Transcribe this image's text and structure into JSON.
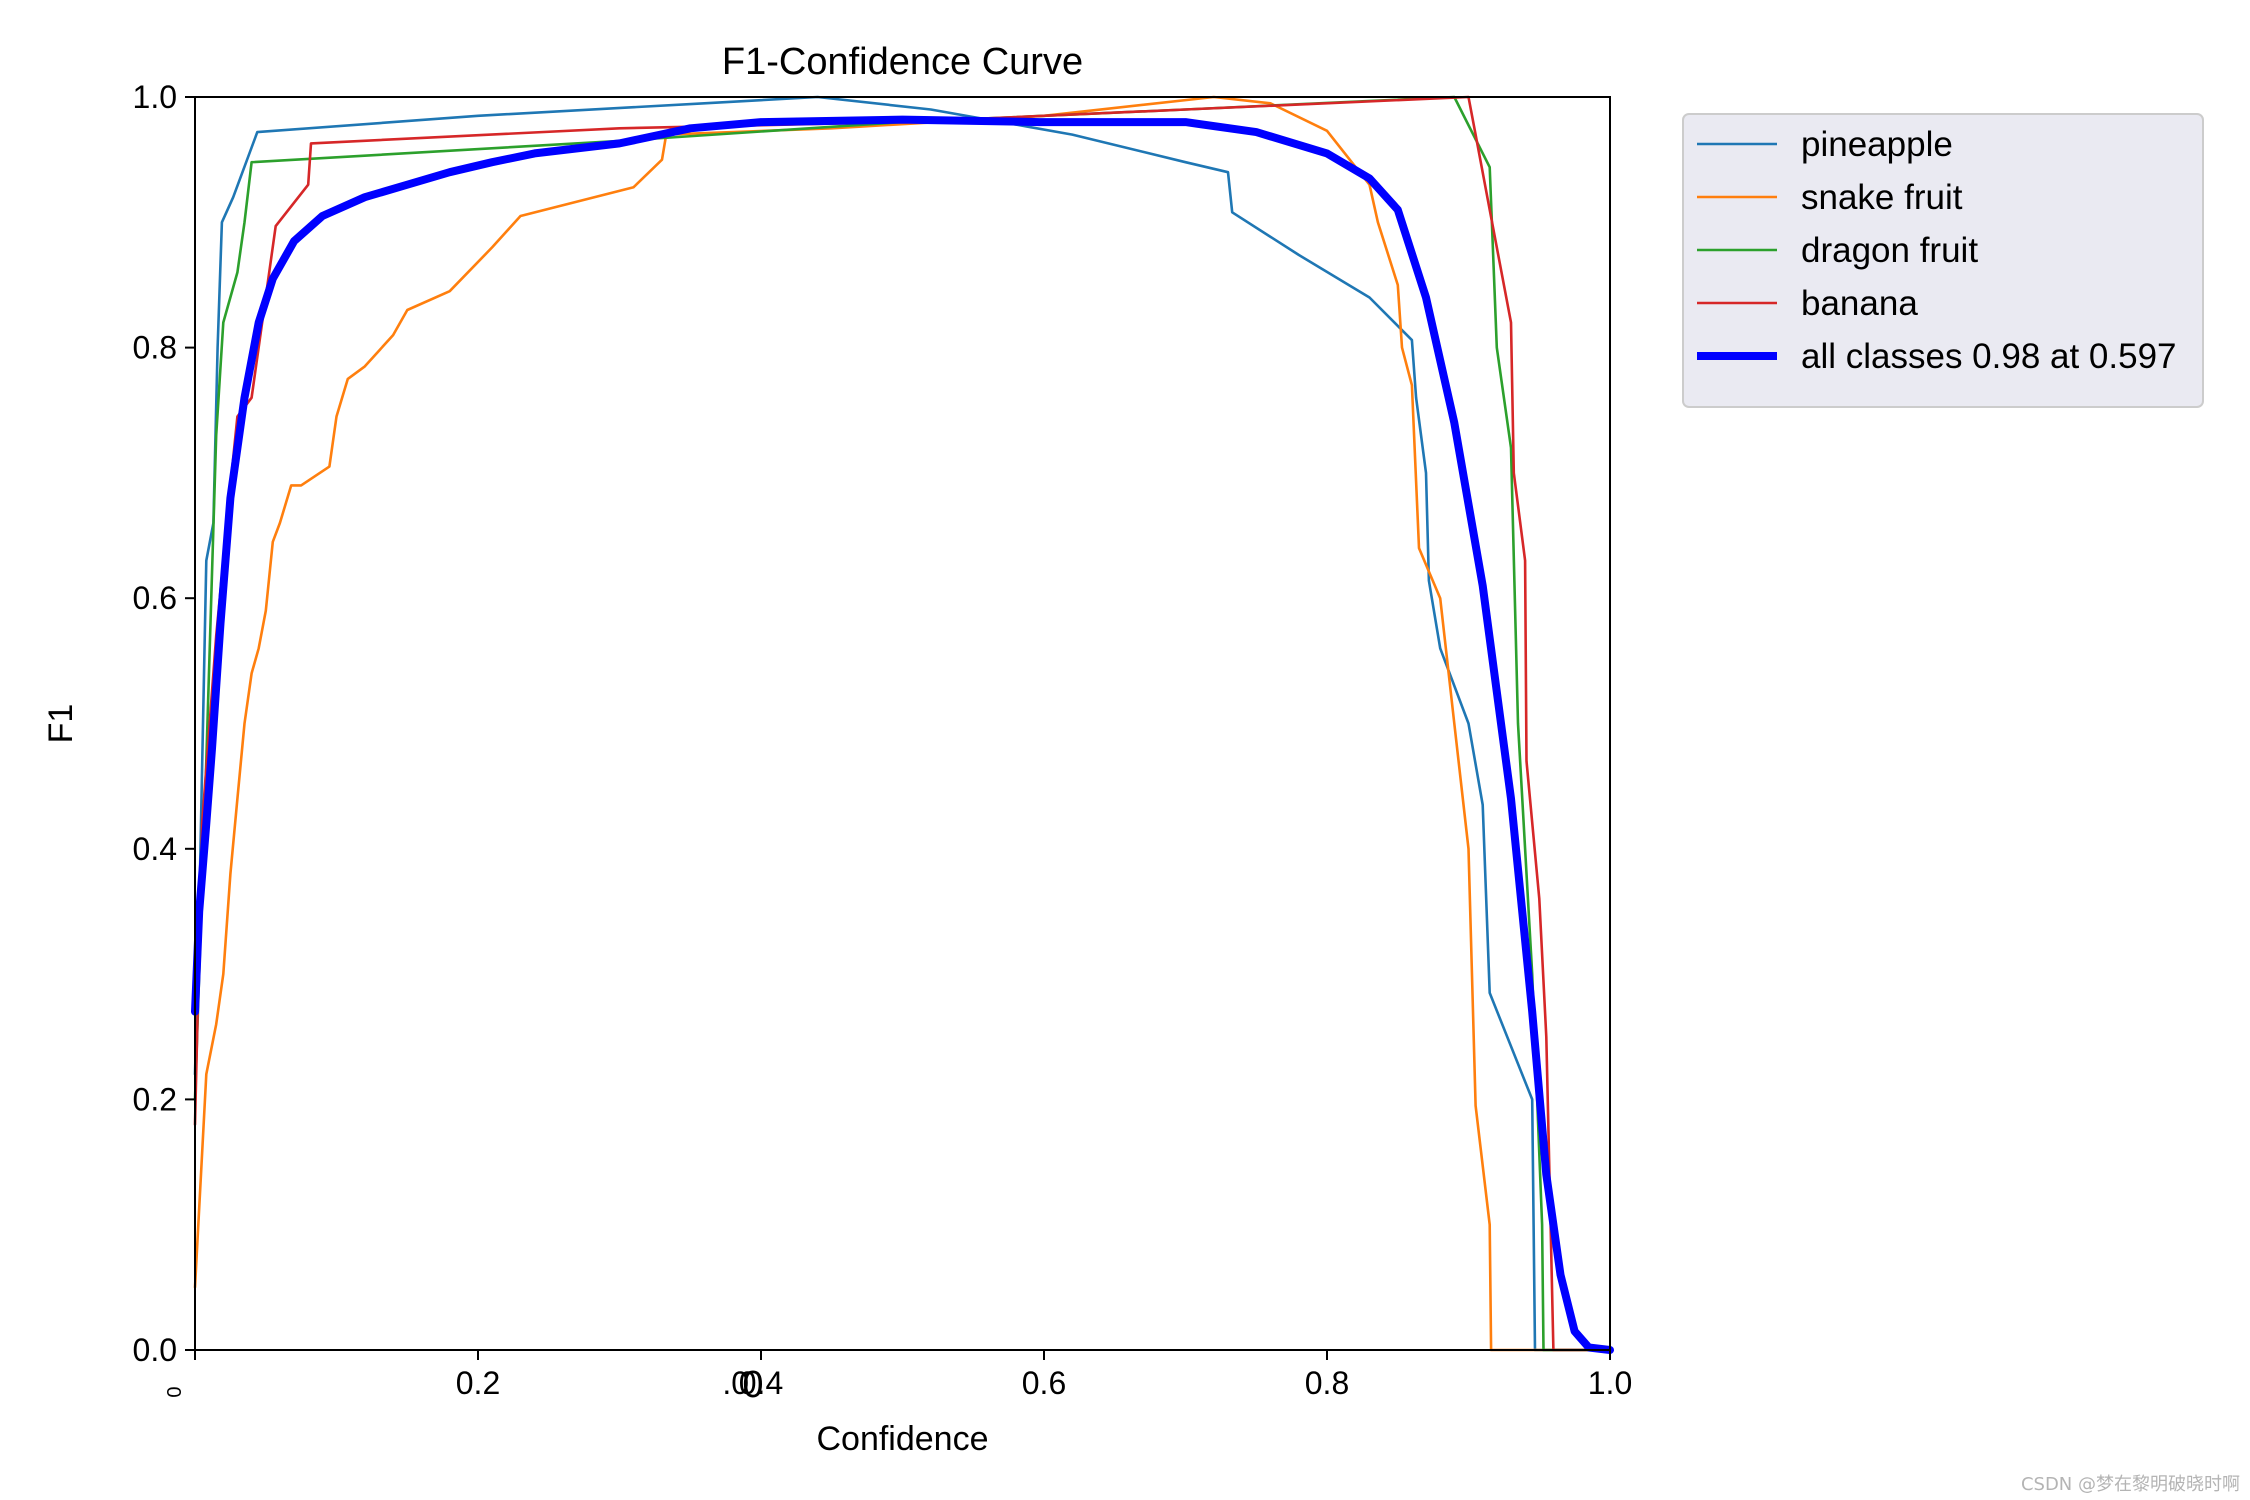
{
  "chart_data": {
    "type": "line",
    "title": "F1-Confidence Curve",
    "xlabel": "Confidence",
    "ylabel": "F1",
    "xlim": [
      0,
      1
    ],
    "ylim": [
      0,
      1
    ],
    "xticks": [
      "0",
      "0.2",
      "0.4",
      "0.6",
      "0.8",
      "1.0"
    ],
    "xticks_extra": [
      "0",
      ".0"
    ],
    "yticks": [
      "0.0",
      "0.2",
      "0.4",
      "0.6",
      "0.8",
      "1.0"
    ],
    "grid": false,
    "legend_position": "outside-right",
    "series": [
      {
        "name": "pineapple",
        "color": "#1f77b4",
        "points": [
          [
            0.0,
            0.22
          ],
          [
            0.003,
            0.35
          ],
          [
            0.008,
            0.63
          ],
          [
            0.013,
            0.66
          ],
          [
            0.016,
            0.8
          ],
          [
            0.019,
            0.9
          ],
          [
            0.027,
            0.92
          ],
          [
            0.044,
            0.972
          ],
          [
            0.2,
            0.985
          ],
          [
            0.36,
            0.995
          ],
          [
            0.44,
            1.0
          ],
          [
            0.52,
            0.99
          ],
          [
            0.62,
            0.97
          ],
          [
            0.7,
            0.948
          ],
          [
            0.73,
            0.94
          ],
          [
            0.733,
            0.908
          ],
          [
            0.78,
            0.874
          ],
          [
            0.83,
            0.84
          ],
          [
            0.86,
            0.806
          ],
          [
            0.863,
            0.76
          ],
          [
            0.87,
            0.7
          ],
          [
            0.872,
            0.614
          ],
          [
            0.88,
            0.56
          ],
          [
            0.9,
            0.5
          ],
          [
            0.91,
            0.435
          ],
          [
            0.915,
            0.285
          ],
          [
            0.945,
            0.2
          ],
          [
            0.946,
            0.1
          ],
          [
            0.947,
            0.0
          ],
          [
            1.0,
            0.0
          ]
        ]
      },
      {
        "name": "snake fruit",
        "color": "#ff7f0e",
        "points": [
          [
            0.0,
            0.05
          ],
          [
            0.008,
            0.22
          ],
          [
            0.015,
            0.26
          ],
          [
            0.02,
            0.3
          ],
          [
            0.025,
            0.38
          ],
          [
            0.03,
            0.44
          ],
          [
            0.035,
            0.5
          ],
          [
            0.04,
            0.54
          ],
          [
            0.045,
            0.56
          ],
          [
            0.05,
            0.59
          ],
          [
            0.055,
            0.645
          ],
          [
            0.06,
            0.66
          ],
          [
            0.068,
            0.69
          ],
          [
            0.075,
            0.69
          ],
          [
            0.095,
            0.705
          ],
          [
            0.1,
            0.745
          ],
          [
            0.108,
            0.775
          ],
          [
            0.12,
            0.785
          ],
          [
            0.14,
            0.81
          ],
          [
            0.15,
            0.83
          ],
          [
            0.18,
            0.845
          ],
          [
            0.21,
            0.88
          ],
          [
            0.23,
            0.905
          ],
          [
            0.31,
            0.928
          ],
          [
            0.33,
            0.95
          ],
          [
            0.333,
            0.97
          ],
          [
            0.45,
            0.975
          ],
          [
            0.6,
            0.985
          ],
          [
            0.72,
            1.0
          ],
          [
            0.76,
            0.995
          ],
          [
            0.8,
            0.973
          ],
          [
            0.83,
            0.93
          ],
          [
            0.836,
            0.9
          ],
          [
            0.85,
            0.85
          ],
          [
            0.853,
            0.8
          ],
          [
            0.86,
            0.77
          ],
          [
            0.865,
            0.64
          ],
          [
            0.88,
            0.6
          ],
          [
            0.89,
            0.5
          ],
          [
            0.9,
            0.4
          ],
          [
            0.905,
            0.195
          ],
          [
            0.915,
            0.1
          ],
          [
            0.916,
            0.0
          ],
          [
            1.0,
            0.0
          ]
        ]
      },
      {
        "name": "dragon fruit",
        "color": "#2ca02c",
        "points": [
          [
            0.0,
            0.2
          ],
          [
            0.008,
            0.47
          ],
          [
            0.015,
            0.73
          ],
          [
            0.02,
            0.82
          ],
          [
            0.03,
            0.86
          ],
          [
            0.035,
            0.9
          ],
          [
            0.04,
            0.948
          ],
          [
            0.3,
            0.965
          ],
          [
            0.5,
            0.98
          ],
          [
            0.7,
            0.99
          ],
          [
            0.89,
            1.0
          ],
          [
            0.915,
            0.944
          ],
          [
            0.92,
            0.8
          ],
          [
            0.93,
            0.72
          ],
          [
            0.935,
            0.5
          ],
          [
            0.945,
            0.3
          ],
          [
            0.952,
            0.1
          ],
          [
            0.953,
            0.0
          ],
          [
            1.0,
            0.0
          ]
        ]
      },
      {
        "name": "banana",
        "color": "#d62728",
        "points": [
          [
            0.0,
            0.18
          ],
          [
            0.005,
            0.42
          ],
          [
            0.015,
            0.57
          ],
          [
            0.025,
            0.69
          ],
          [
            0.03,
            0.745
          ],
          [
            0.04,
            0.76
          ],
          [
            0.057,
            0.897
          ],
          [
            0.08,
            0.93
          ],
          [
            0.082,
            0.963
          ],
          [
            0.3,
            0.975
          ],
          [
            0.5,
            0.98
          ],
          [
            0.7,
            0.99
          ],
          [
            0.9,
            1.0
          ],
          [
            0.905,
            0.97
          ],
          [
            0.915,
            0.91
          ],
          [
            0.93,
            0.82
          ],
          [
            0.932,
            0.7
          ],
          [
            0.94,
            0.63
          ],
          [
            0.941,
            0.47
          ],
          [
            0.95,
            0.36
          ],
          [
            0.955,
            0.25
          ],
          [
            0.958,
            0.1
          ],
          [
            0.96,
            0.0
          ],
          [
            1.0,
            0.0
          ]
        ]
      },
      {
        "name": "all classes 0.98 at 0.597",
        "color": "#0000ff",
        "bold": true,
        "points": [
          [
            0.0,
            0.27
          ],
          [
            0.003,
            0.35
          ],
          [
            0.008,
            0.42
          ],
          [
            0.012,
            0.48
          ],
          [
            0.018,
            0.58
          ],
          [
            0.025,
            0.68
          ],
          [
            0.035,
            0.76
          ],
          [
            0.045,
            0.82
          ],
          [
            0.055,
            0.855
          ],
          [
            0.07,
            0.885
          ],
          [
            0.09,
            0.905
          ],
          [
            0.12,
            0.92
          ],
          [
            0.15,
            0.93
          ],
          [
            0.18,
            0.94
          ],
          [
            0.21,
            0.948
          ],
          [
            0.24,
            0.955
          ],
          [
            0.3,
            0.963
          ],
          [
            0.35,
            0.975
          ],
          [
            0.4,
            0.98
          ],
          [
            0.5,
            0.982
          ],
          [
            0.597,
            0.98
          ],
          [
            0.7,
            0.98
          ],
          [
            0.75,
            0.972
          ],
          [
            0.8,
            0.955
          ],
          [
            0.83,
            0.935
          ],
          [
            0.85,
            0.91
          ],
          [
            0.87,
            0.84
          ],
          [
            0.89,
            0.74
          ],
          [
            0.91,
            0.61
          ],
          [
            0.93,
            0.44
          ],
          [
            0.945,
            0.27
          ],
          [
            0.955,
            0.14
          ],
          [
            0.965,
            0.06
          ],
          [
            0.975,
            0.015
          ],
          [
            0.985,
            0.002
          ],
          [
            1.0,
            0.0
          ]
        ]
      }
    ]
  },
  "watermark": "CSDN @梦在黎明破晓时啊"
}
